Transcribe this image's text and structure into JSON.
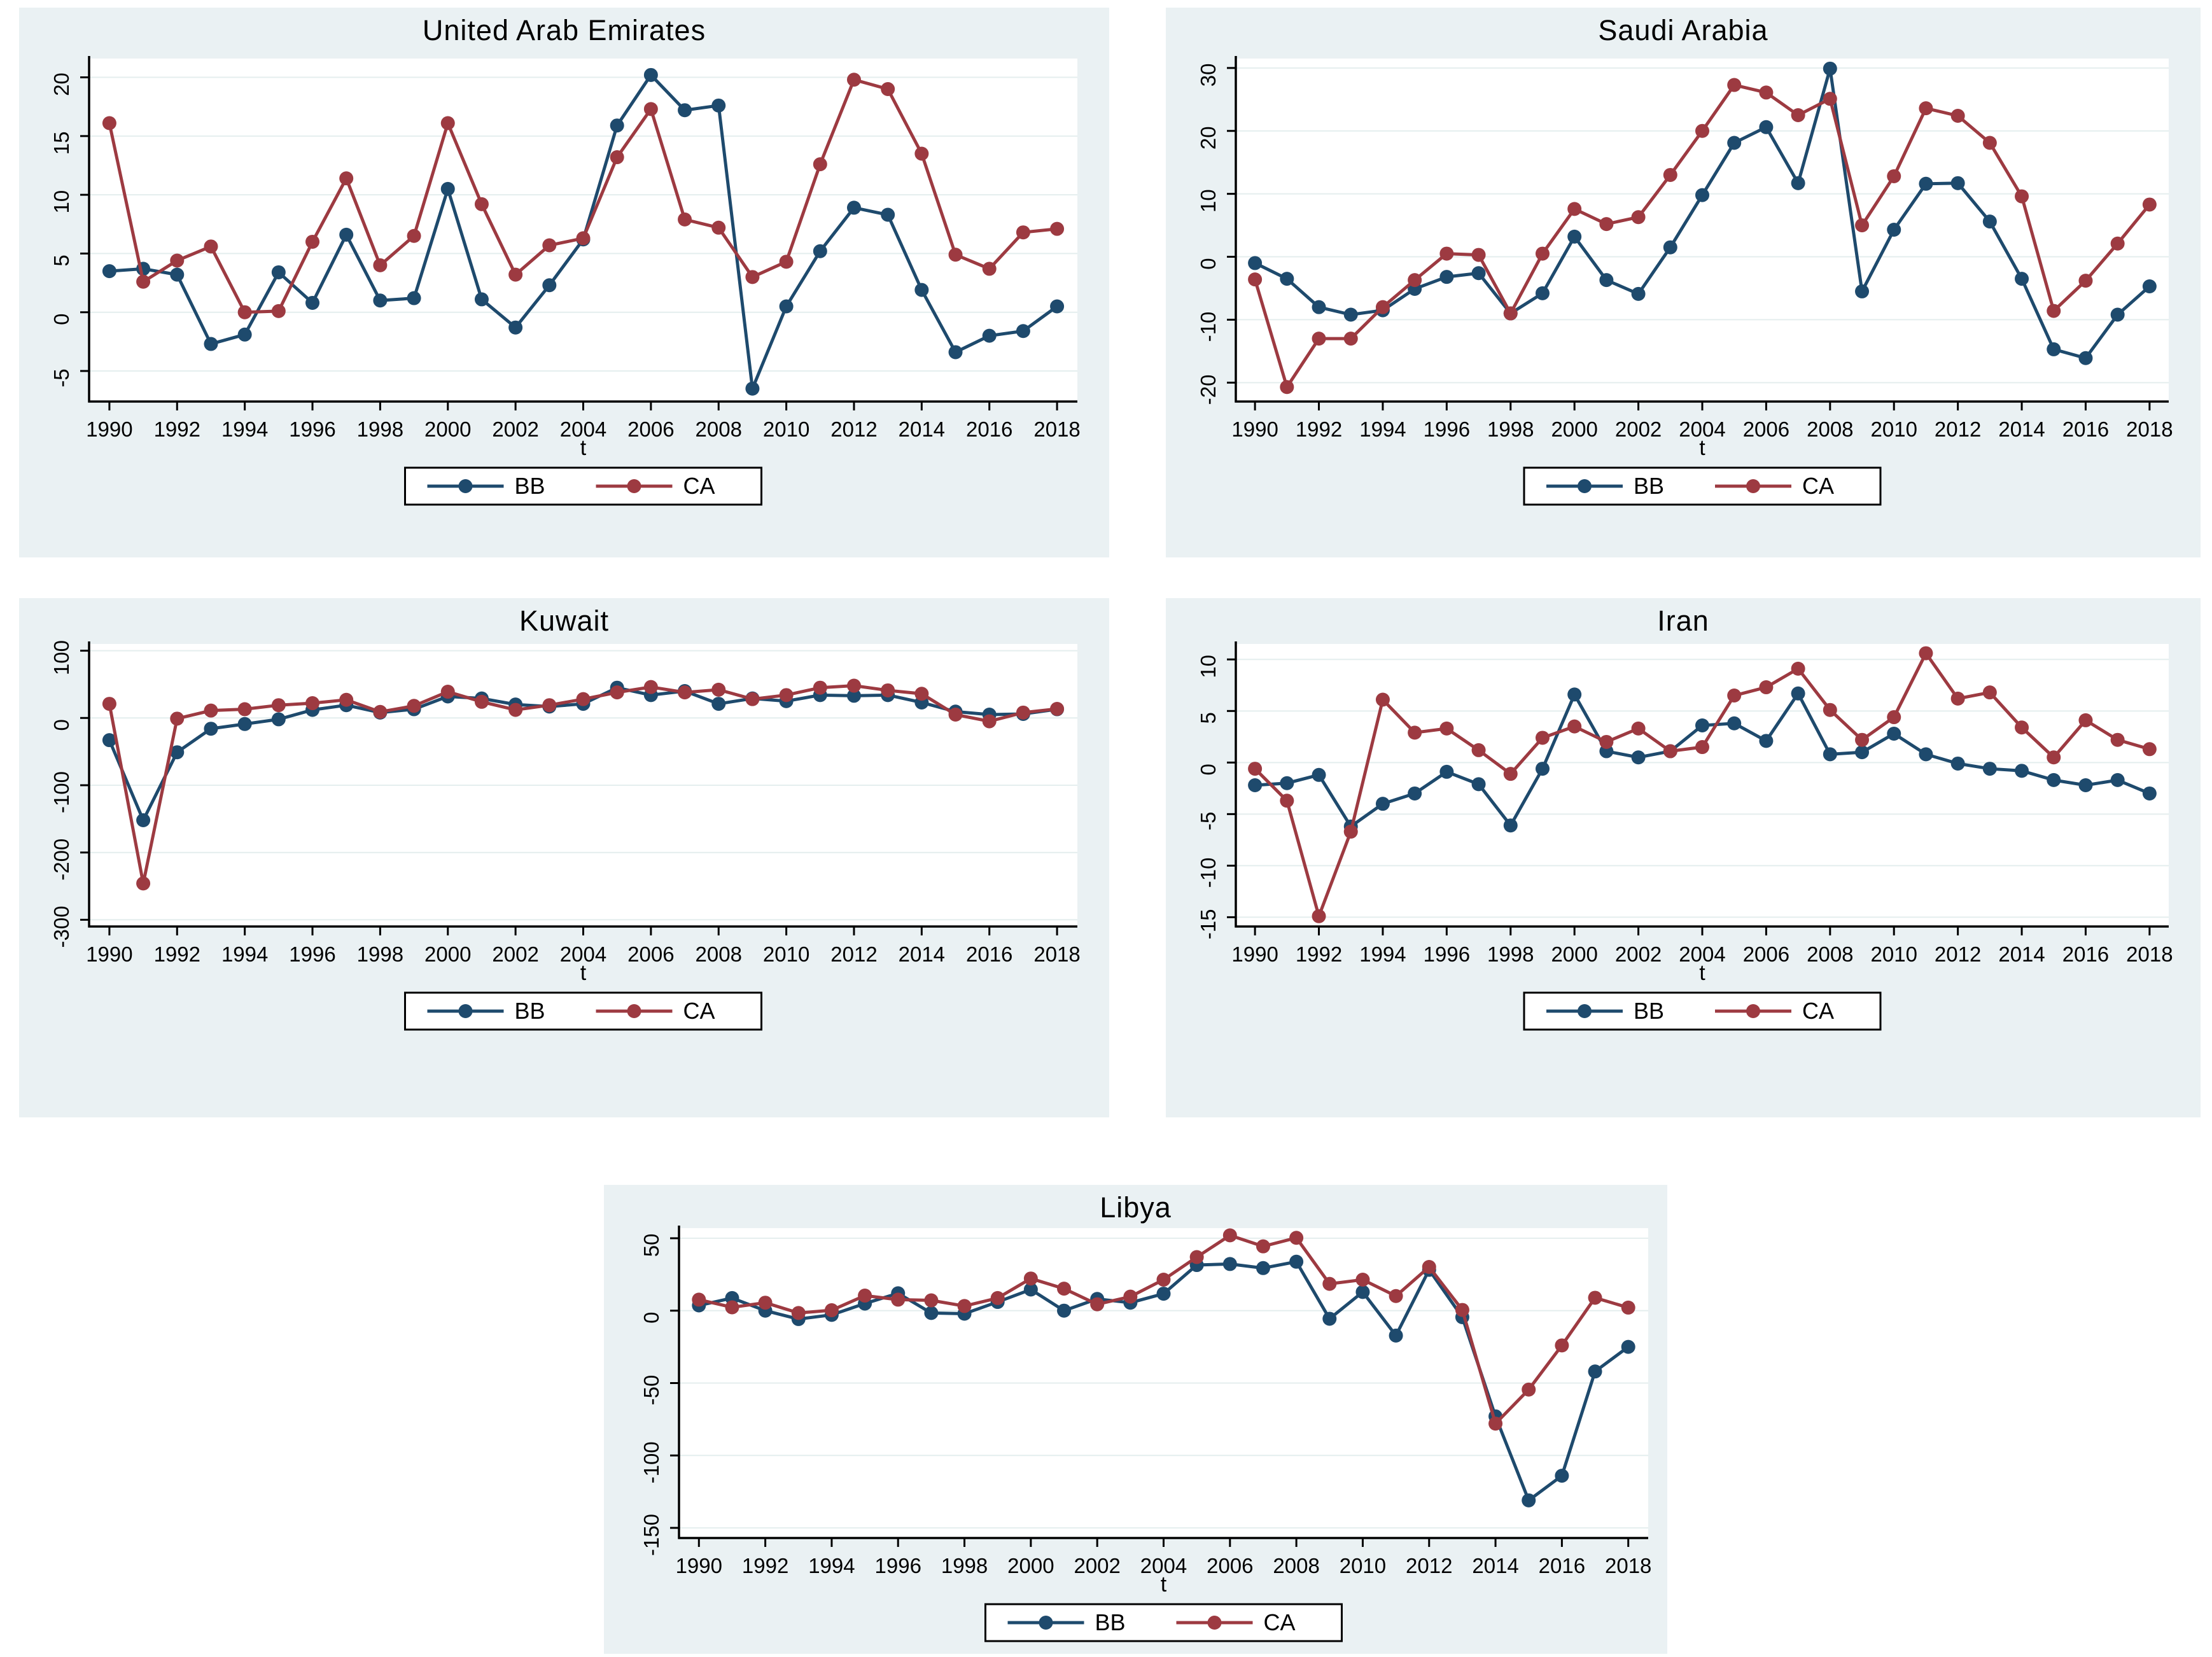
{
  "figure": {
    "x_axis_title": "t",
    "x_tick_years": [
      1990,
      1992,
      1994,
      1996,
      1998,
      2000,
      2002,
      2004,
      2006,
      2008,
      2010,
      2012,
      2014,
      2016,
      2018
    ],
    "legend": {
      "bb_label": "BB",
      "ca_label": "CA"
    }
  },
  "colors": {
    "bb": "#1e4a6d",
    "ca": "#9d3a41",
    "panel_bg": "#eaf1f3",
    "plot_bg": "#ffffff",
    "grid": "#e4eeee",
    "axis": "#000000",
    "text": "#000000"
  },
  "chart_data": [
    {
      "type": "line",
      "title": "United Arab Emirates",
      "xlabel": "t",
      "ylabel": "",
      "grid": true,
      "legend_position": "bottom",
      "yticks": [
        -5,
        0,
        5,
        10,
        15,
        20
      ],
      "ylim": [
        -7.6,
        21.6
      ],
      "years": [
        1990,
        1991,
        1992,
        1993,
        1994,
        1995,
        1996,
        1997,
        1998,
        1999,
        2000,
        2001,
        2002,
        2003,
        2004,
        2005,
        2006,
        2007,
        2008,
        2009,
        2010,
        2011,
        2012,
        2013,
        2014,
        2015,
        2016,
        2017,
        2018
      ],
      "series": [
        {
          "name": "BB",
          "values": [
            3.5,
            3.7,
            3.2,
            -2.7,
            -1.9,
            3.4,
            0.8,
            6.6,
            1.0,
            1.2,
            10.5,
            1.1,
            -1.3,
            2.3,
            6.2,
            15.9,
            20.2,
            17.2,
            17.6,
            -6.5,
            0.5,
            5.2,
            8.9,
            8.3,
            1.9,
            -3.4,
            -2.0,
            -1.6,
            0.5
          ]
        },
        {
          "name": "CA",
          "values": [
            16.1,
            2.6,
            4.4,
            5.6,
            0.0,
            0.1,
            6.0,
            11.4,
            4.0,
            6.5,
            16.1,
            9.2,
            3.2,
            5.7,
            6.3,
            13.2,
            17.3,
            7.9,
            7.2,
            3.0,
            4.3,
            12.6,
            19.8,
            19.0,
            13.5,
            4.9,
            3.7,
            6.8,
            7.1
          ]
        }
      ]
    },
    {
      "type": "line",
      "title": "Saudi Arabia",
      "xlabel": "t",
      "ylabel": "",
      "grid": true,
      "legend_position": "bottom",
      "yticks": [
        -20,
        -10,
        0,
        10,
        20,
        30
      ],
      "ylim": [
        -23,
        31.5
      ],
      "years": [
        1990,
        1991,
        1992,
        1993,
        1994,
        1995,
        1996,
        1997,
        1998,
        1999,
        2000,
        2001,
        2002,
        2003,
        2004,
        2005,
        2006,
        2007,
        2008,
        2009,
        2010,
        2011,
        2012,
        2013,
        2014,
        2015,
        2016,
        2017,
        2018
      ],
      "series": [
        {
          "name": "BB",
          "values": [
            -1.0,
            -3.5,
            -8.0,
            -9.2,
            -8.5,
            -5.1,
            -3.2,
            -2.6,
            -9.0,
            -5.8,
            3.2,
            -3.7,
            -5.9,
            1.5,
            9.8,
            18.1,
            20.6,
            11.7,
            29.9,
            -5.5,
            4.3,
            11.6,
            11.7,
            5.6,
            -3.5,
            -14.7,
            -16.1,
            -9.2,
            -4.7
          ]
        },
        {
          "name": "CA",
          "values": [
            -3.6,
            -20.7,
            -13.0,
            -13.0,
            -8.0,
            -3.7,
            0.5,
            0.3,
            -9.0,
            0.5,
            7.6,
            5.2,
            6.3,
            13.0,
            20.0,
            27.3,
            26.1,
            22.5,
            25.1,
            5.0,
            12.8,
            23.6,
            22.4,
            18.1,
            9.6,
            -8.6,
            -3.8,
            2.1,
            8.3
          ]
        }
      ]
    },
    {
      "type": "line",
      "title": "Kuwait",
      "xlabel": "t",
      "ylabel": "",
      "grid": true,
      "legend_position": "bottom",
      "yticks": [
        -300,
        -200,
        -100,
        0,
        100
      ],
      "ylim": [
        -310,
        110
      ],
      "years": [
        1990,
        1991,
        1992,
        1993,
        1994,
        1995,
        1996,
        1997,
        1998,
        1999,
        2000,
        2001,
        2002,
        2003,
        2004,
        2005,
        2006,
        2007,
        2008,
        2009,
        2010,
        2011,
        2012,
        2013,
        2014,
        2015,
        2016,
        2017,
        2018
      ],
      "series": [
        {
          "name": "BB",
          "values": [
            -33,
            -152,
            -51,
            -16,
            -9,
            -2,
            12,
            19,
            8,
            13,
            32,
            29,
            20,
            17,
            21,
            45,
            34,
            40,
            21,
            29,
            25,
            34,
            33,
            34,
            23,
            9.5,
            5,
            6,
            13
          ]
        },
        {
          "name": "CA",
          "values": [
            21,
            -246,
            -1,
            11,
            13,
            19,
            22,
            27,
            9,
            18,
            39,
            24,
            12,
            19,
            28,
            38,
            46,
            38,
            42,
            28,
            34,
            45,
            48,
            41,
            36,
            5,
            -5,
            8,
            13.5
          ]
        }
      ]
    },
    {
      "type": "line",
      "title": "Iran",
      "xlabel": "t",
      "ylabel": "",
      "grid": true,
      "legend_position": "bottom",
      "yticks": [
        -15,
        -10,
        -5,
        0,
        5,
        10
      ],
      "ylim": [
        -15.9,
        11.5
      ],
      "years": [
        1990,
        1991,
        1992,
        1993,
        1994,
        1995,
        1996,
        1997,
        1998,
        1999,
        2000,
        2001,
        2002,
        2003,
        2004,
        2005,
        2006,
        2007,
        2008,
        2009,
        2010,
        2011,
        2012,
        2013,
        2014,
        2015,
        2016,
        2017,
        2018
      ],
      "series": [
        {
          "name": "BB",
          "values": [
            -2.2,
            -2.0,
            -1.2,
            -6.2,
            -4.0,
            -3.0,
            -0.9,
            -2.1,
            -6.1,
            -0.6,
            6.6,
            1.1,
            0.5,
            1.1,
            3.6,
            3.8,
            2.1,
            6.7,
            0.8,
            1.0,
            2.8,
            0.8,
            -0.1,
            -0.6,
            -0.8,
            -1.7,
            -2.2,
            -1.7,
            -3.0
          ]
        },
        {
          "name": "CA",
          "values": [
            -0.6,
            -3.7,
            -14.9,
            -6.7,
            6.1,
            2.9,
            3.3,
            1.2,
            -1.1,
            2.4,
            3.5,
            2.0,
            3.3,
            1.1,
            1.5,
            6.5,
            7.3,
            9.1,
            5.1,
            2.2,
            4.4,
            10.6,
            6.2,
            6.8,
            3.4,
            0.5,
            4.1,
            2.2,
            1.3
          ]
        }
      ]
    },
    {
      "type": "line",
      "title": "Libya",
      "xlabel": "t",
      "ylabel": "",
      "grid": true,
      "legend_position": "bottom",
      "yticks": [
        -150,
        -100,
        -50,
        0,
        50
      ],
      "ylim": [
        -157,
        57
      ],
      "years": [
        1990,
        1991,
        1992,
        1993,
        1994,
        1995,
        1996,
        1997,
        1998,
        1999,
        2000,
        2001,
        2002,
        2003,
        2004,
        2005,
        2006,
        2007,
        2008,
        2009,
        2010,
        2011,
        2012,
        2013,
        2014,
        2015,
        2016,
        2017,
        2018
      ],
      "series": [
        {
          "name": "BB",
          "values": [
            3.6,
            8.7,
            0.0,
            -5.8,
            -2.9,
            4.9,
            12.0,
            -1.6,
            -2.1,
            6.0,
            14.6,
            0.0,
            8.1,
            5.5,
            11.7,
            31.5,
            32.2,
            29.4,
            33.8,
            -5.6,
            12.9,
            -17.2,
            28.2,
            -4.5,
            -73,
            -131,
            -114,
            -42,
            -25
          ]
        },
        {
          "name": "CA",
          "values": [
            7.6,
            2.3,
            5.5,
            -1.6,
            0.3,
            10.4,
            7.6,
            7.1,
            3.2,
            8.7,
            22.2,
            15.2,
            4.4,
            9.7,
            21.4,
            37.0,
            52.0,
            44.4,
            50.3,
            18.5,
            21.4,
            10.1,
            30.2,
            0.5,
            -78,
            -54.5,
            -24,
            8.9,
            2.1
          ]
        }
      ]
    }
  ],
  "panels_layout_note": "Stata-style small multiples: BB vs CA, 1990-2018"
}
